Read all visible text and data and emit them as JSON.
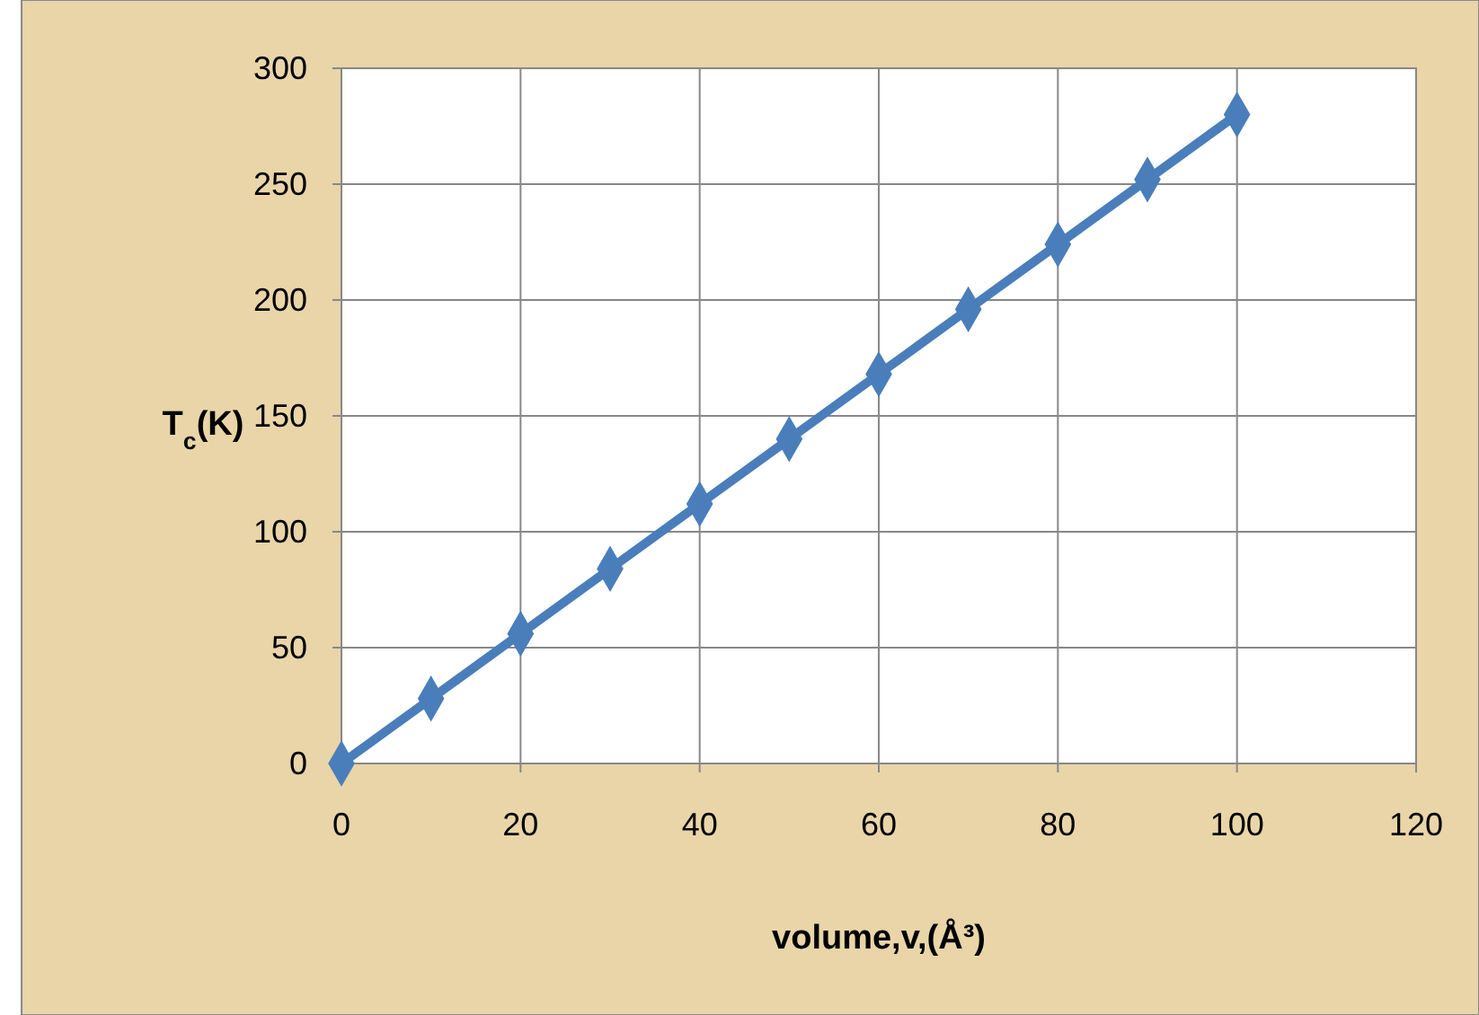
{
  "chart_data": {
    "type": "line",
    "xlabel": "volume,v,(Å³)",
    "ylabel": "T$_{c}$(K)",
    "x": [
      0,
      10,
      20,
      30,
      40,
      50,
      60,
      70,
      80,
      90,
      100
    ],
    "series": [
      {
        "color": "#4a7ebb",
        "values": [
          0,
          28,
          56,
          84,
          112,
          140,
          168,
          196,
          224,
          252,
          280
        ]
      }
    ],
    "xlim": [
      0,
      120
    ],
    "xticks": [
      0,
      20,
      40,
      60,
      80,
      100,
      120
    ],
    "ylim": [
      0,
      300
    ],
    "yticks": [
      0,
      50,
      100,
      150,
      200,
      250,
      300
    ],
    "grid": true,
    "marker": "diamond",
    "line_style": "solid"
  }
}
